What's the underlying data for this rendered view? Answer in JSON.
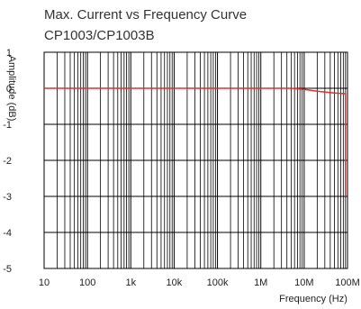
{
  "chart_data": {
    "type": "line",
    "title": "Max. Current vs Frequency Curve",
    "subtitle": "CP1003/CP1003B",
    "xlabel": "Frequency (Hz)",
    "ylabel": "Amplitude (dB)",
    "xscale": "log",
    "xlim": [
      10,
      100000000
    ],
    "ylim": [
      -5,
      1
    ],
    "x_ticks": [
      10,
      100,
      1000,
      10000,
      100000,
      1000000,
      10000000,
      100000000
    ],
    "x_tick_labels": [
      "10",
      "100",
      "1k",
      "10k",
      "100k",
      "1M",
      "10M",
      "100M"
    ],
    "y_ticks": [
      1,
      0,
      -1,
      -2,
      -3,
      -4,
      -5
    ],
    "y_tick_labels": [
      "1",
      "0",
      "-1",
      "-2",
      "-3",
      "-4",
      "-5"
    ],
    "grid": true,
    "series": [
      {
        "color": "#e0302a",
        "x": [
          10,
          1000000,
          5000000,
          10000000,
          20000000,
          50000000,
          90000000,
          90000000
        ],
        "y": [
          0,
          0,
          0,
          -0.03,
          -0.08,
          -0.13,
          -0.15,
          -3.0
        ]
      }
    ]
  }
}
